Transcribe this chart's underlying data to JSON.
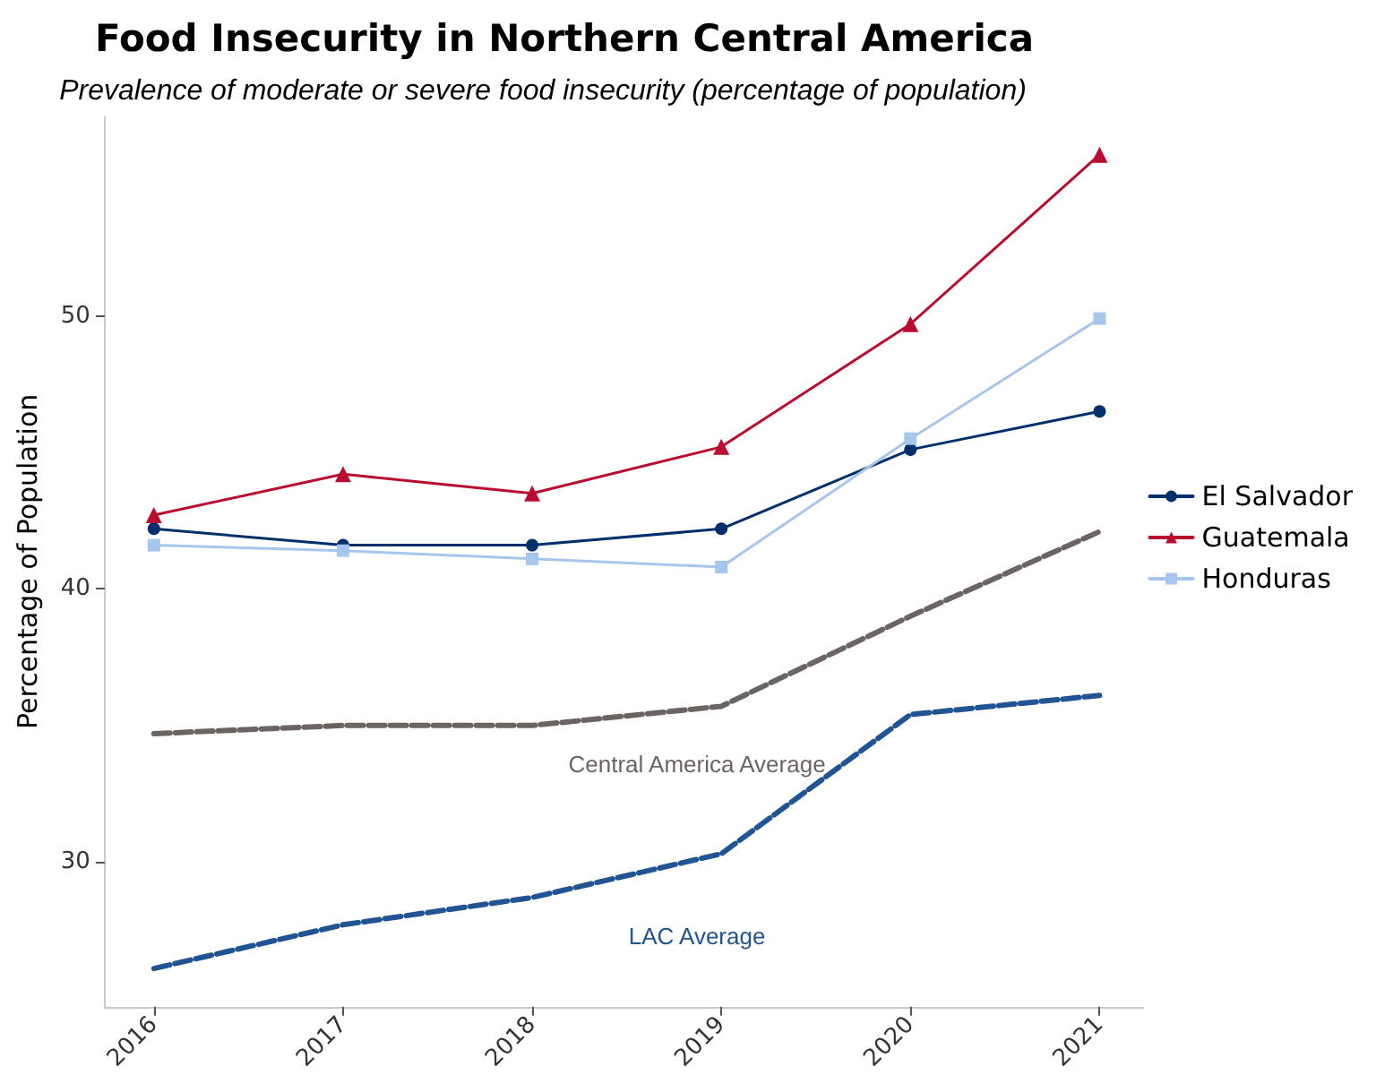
{
  "chart_data": {
    "type": "line",
    "title": "Food Insecurity in Northern Central America",
    "subtitle": "Prevalence of moderate or severe food insecurity (percentage of population)",
    "ylabel": "Percentage of Population",
    "x": [
      2016,
      2017,
      2018,
      2019,
      2020,
      2021
    ],
    "xlim": [
      2015.74,
      2021.23
    ],
    "xticks": [
      2016,
      2017,
      2018,
      2019,
      2020,
      2021
    ],
    "ylim": [
      24.7,
      57.3
    ],
    "yticks": [
      30,
      40,
      50
    ],
    "grid": false,
    "legend": "right",
    "series": [
      {
        "name": "El Salvador",
        "color": "#002f6c",
        "marker": "circle",
        "line_style": "solid",
        "values": [
          42.2,
          41.6,
          41.6,
          42.2,
          45.1,
          46.5
        ]
      },
      {
        "name": "Guatemala",
        "color": "#ba0c2f",
        "marker": "triangle",
        "line_style": "solid",
        "values": [
          42.7,
          44.2,
          43.5,
          45.2,
          49.7,
          55.9
        ]
      },
      {
        "name": "Honduras",
        "color": "#a7c6ed",
        "marker": "square",
        "line_style": "solid",
        "values": [
          41.6,
          41.4,
          41.1,
          40.8,
          45.5,
          49.9
        ]
      },
      {
        "name": "Central America Average",
        "color": "#6c6463",
        "marker": "none",
        "line_style": "dashed",
        "values": [
          34.7,
          35.0,
          35.0,
          35.7,
          39.0,
          42.1
        ]
      },
      {
        "name": "LAC Average",
        "color": "#205493",
        "marker": "none",
        "line_style": "dashed",
        "values": [
          26.1,
          27.7,
          28.7,
          30.3,
          35.4,
          36.1
        ]
      }
    ]
  }
}
